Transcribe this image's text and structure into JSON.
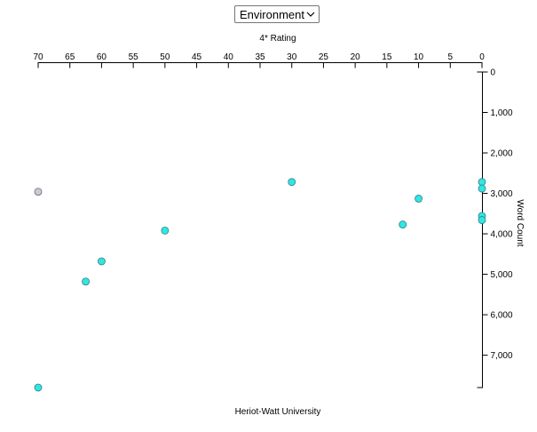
{
  "dropdown": {
    "selected": "Environment"
  },
  "chart_data": {
    "type": "scatter",
    "xlabel": "4* Rating",
    "ylabel": "Word Count",
    "footer_label": "Heriot-Watt University",
    "x_axis_position": "top",
    "y_axis_position": "right",
    "x_reversed": true,
    "xlim": [
      0,
      70
    ],
    "ylim": [
      0,
      7800
    ],
    "xticks": [
      70,
      65,
      60,
      55,
      50,
      45,
      40,
      35,
      30,
      25,
      20,
      15,
      10,
      5,
      0
    ],
    "yticks": [
      0,
      1000,
      2000,
      3000,
      4000,
      5000,
      6000,
      7000
    ],
    "ytick_labels": [
      "0",
      "1,000",
      "2,000",
      "3,000",
      "4,000",
      "5,000",
      "6,000",
      "7,000"
    ],
    "grid": false,
    "colors": {
      "default_point": "#2de8e0",
      "highlight_point": "#e3c0c8",
      "point_stroke": "#3a7a8a"
    },
    "points": [
      {
        "x": 70,
        "y": 2960,
        "highlight": true
      },
      {
        "x": 30,
        "y": 2720,
        "highlight": false
      },
      {
        "x": 50,
        "y": 3920,
        "highlight": false
      },
      {
        "x": 60,
        "y": 4680,
        "highlight": false
      },
      {
        "x": 62.5,
        "y": 5180,
        "highlight": false
      },
      {
        "x": 70,
        "y": 7800,
        "highlight": false
      },
      {
        "x": 12.5,
        "y": 3770,
        "highlight": false
      },
      {
        "x": 10,
        "y": 3130,
        "highlight": false
      },
      {
        "x": 0,
        "y": 2720,
        "highlight": false
      },
      {
        "x": 0,
        "y": 2880,
        "highlight": false
      },
      {
        "x": 0,
        "y": 3560,
        "highlight": false
      },
      {
        "x": 0,
        "y": 3660,
        "highlight": false
      }
    ]
  }
}
